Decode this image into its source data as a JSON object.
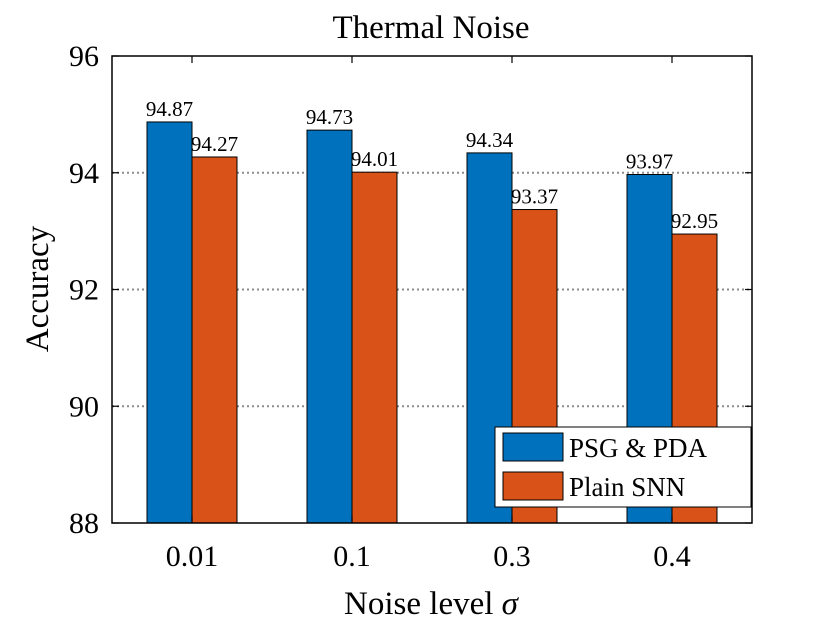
{
  "chart_data": {
    "type": "bar",
    "title": "Thermal Noise",
    "xlabel": "Noise level",
    "xlabel_symbol": "σ",
    "ylabel": "Accuracy",
    "ylim": [
      88,
      96
    ],
    "yticks": [
      "88",
      "90",
      "92",
      "94",
      "96"
    ],
    "categories": [
      "0.01",
      "0.1",
      "0.3",
      "0.4"
    ],
    "grid": "horizontal dotted",
    "legend_position": "bottom-right",
    "series": [
      {
        "name": "PSG & PDA",
        "color": "#0072BD",
        "values": [
          94.87,
          94.73,
          94.34,
          93.97
        ],
        "labels": [
          "94.87",
          "94.73",
          "94.34",
          "93.97"
        ]
      },
      {
        "name": "Plain SNN",
        "color": "#D95319",
        "values": [
          94.27,
          94.01,
          93.37,
          92.95
        ],
        "labels": [
          "94.27",
          "94.01",
          "93.37",
          "92.95"
        ]
      }
    ]
  }
}
